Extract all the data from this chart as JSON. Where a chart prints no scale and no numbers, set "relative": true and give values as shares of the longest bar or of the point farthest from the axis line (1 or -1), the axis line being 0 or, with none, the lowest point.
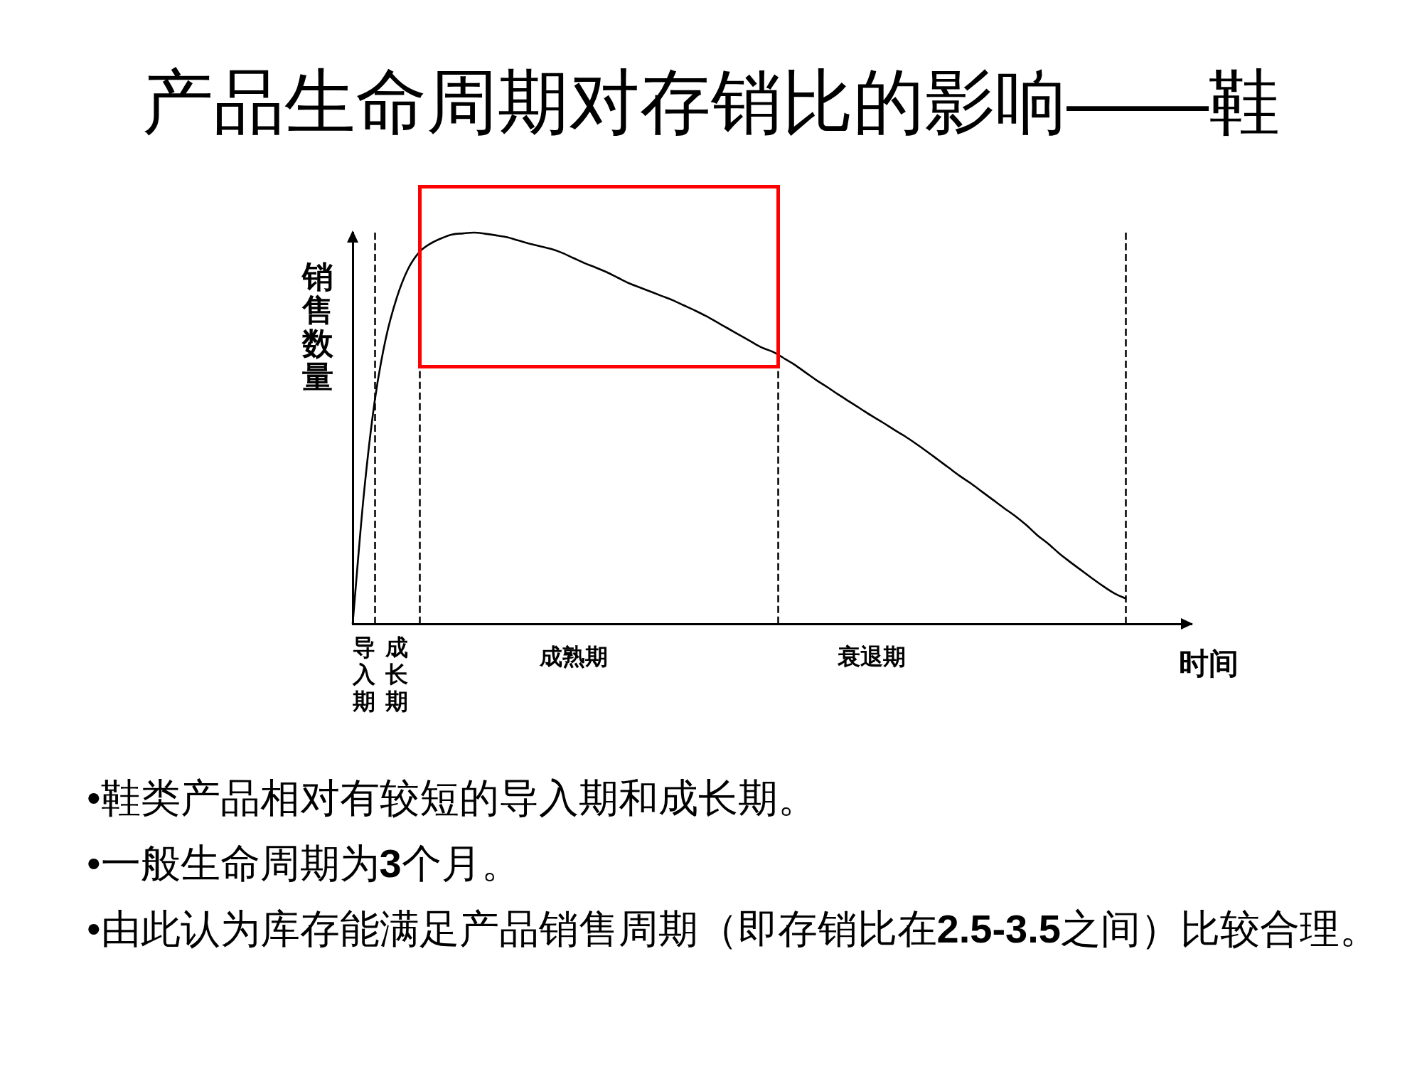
{
  "chart_data": {
    "type": "line",
    "title": "产品生命周期对存销比的影响——鞋",
    "xlabel": "时间",
    "ylabel": "销售数量",
    "relative": true,
    "tick_labels": "x",
    "marker": "none",
    "line_style": "solid",
    "categories": [
      null,
      "导入期",
      null,
      null,
      "成长期",
      null,
      null,
      null,
      null,
      null,
      null,
      null,
      null,
      null,
      null,
      null,
      null,
      null,
      null,
      null,
      "成熟期",
      null,
      null,
      null,
      null,
      null,
      null,
      null,
      null,
      null,
      null,
      null,
      null,
      null,
      null,
      null,
      null,
      null,
      null,
      null,
      null,
      null,
      null,
      null,
      null,
      null,
      null,
      "衰退期",
      null,
      null,
      null,
      null,
      null,
      null,
      null,
      null,
      null,
      null,
      null,
      null,
      null,
      null,
      null,
      null,
      null,
      null,
      null,
      null,
      null,
      null,
      null,
      null,
      null,
      null,
      null,
      null,
      null
    ],
    "series": [
      {
        "color": "#000000",
        "values": [
          0,
          0.327,
          0.57,
          0.729,
          0.834,
          0.906,
          0.949,
          0.971,
          0.985,
          0.995,
          0.998,
          1.0,
          0.997,
          0.993,
          0.988,
          0.98,
          0.972,
          0.965,
          0.958,
          0.948,
          0.935,
          0.922,
          0.911,
          0.899,
          0.885,
          0.871,
          0.86,
          0.849,
          0.838,
          0.827,
          0.814,
          0.801,
          0.787,
          0.771,
          0.755,
          0.739,
          0.723,
          0.707,
          0.696,
          0.68,
          0.663,
          0.643,
          0.623,
          0.605,
          0.586,
          0.568,
          0.55,
          0.532,
          0.515,
          0.497,
          0.48,
          0.461,
          0.441,
          0.42,
          0.399,
          0.378,
          0.359,
          0.338,
          0.317,
          0.296,
          0.276,
          0.253,
          0.227,
          0.205,
          0.18,
          0.158,
          0.137,
          0.116,
          0.096,
          0.078,
          0.065,
          null,
          null,
          null,
          null,
          null,
          null
        ]
      }
    ],
    "annotations": [
      "•鞋类产品相对有较短的导入期和成长期。",
      "•一般生命周期为3个月。",
      "•由此认为库存能满足产品销售周期（即存销比在2.5-3.5之间）比较合理。"
    ]
  }
}
